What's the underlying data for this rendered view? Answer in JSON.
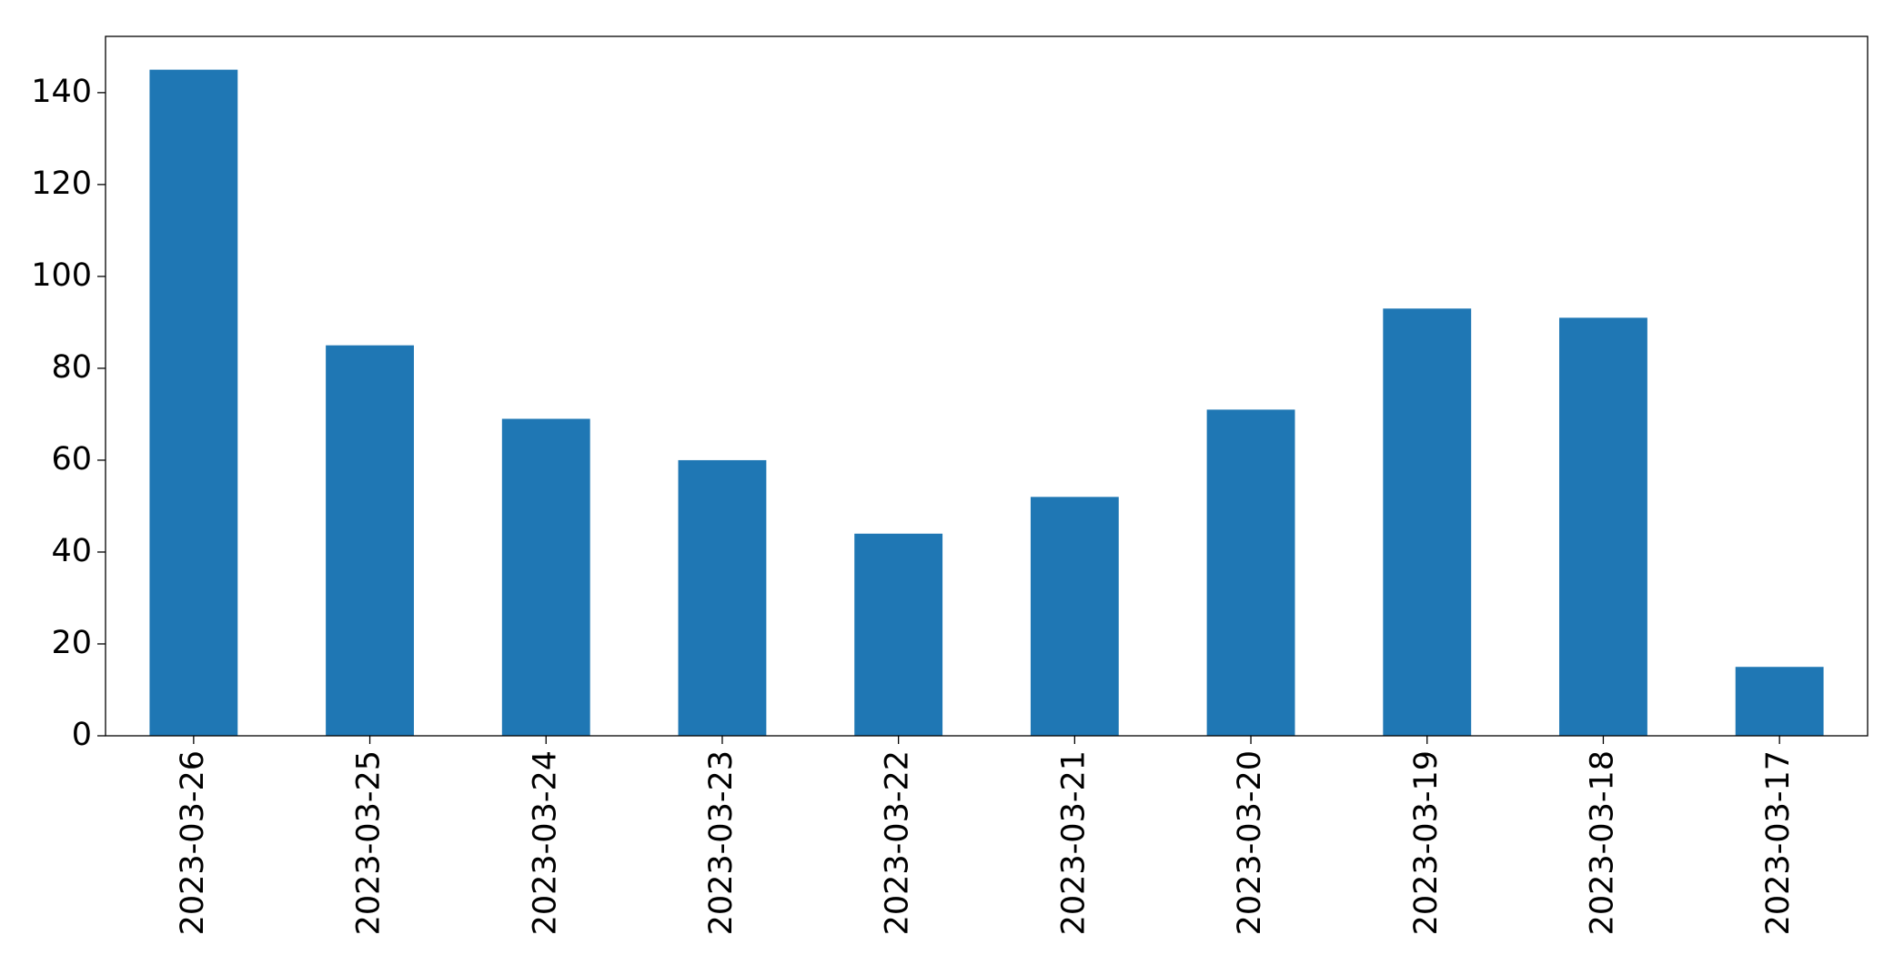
{
  "chart_data": {
    "type": "bar",
    "categories": [
      "2023-03-26",
      "2023-03-25",
      "2023-03-24",
      "2023-03-23",
      "2023-03-22",
      "2023-03-21",
      "2023-03-20",
      "2023-03-19",
      "2023-03-18",
      "2023-03-17"
    ],
    "values": [
      145,
      85,
      69,
      60,
      44,
      52,
      71,
      93,
      91,
      15
    ],
    "color": "#1f77b4",
    "ylim": [
      0,
      152.25
    ],
    "yticks": [
      0,
      20,
      40,
      60,
      80,
      100,
      120,
      140
    ],
    "grid": false
  }
}
